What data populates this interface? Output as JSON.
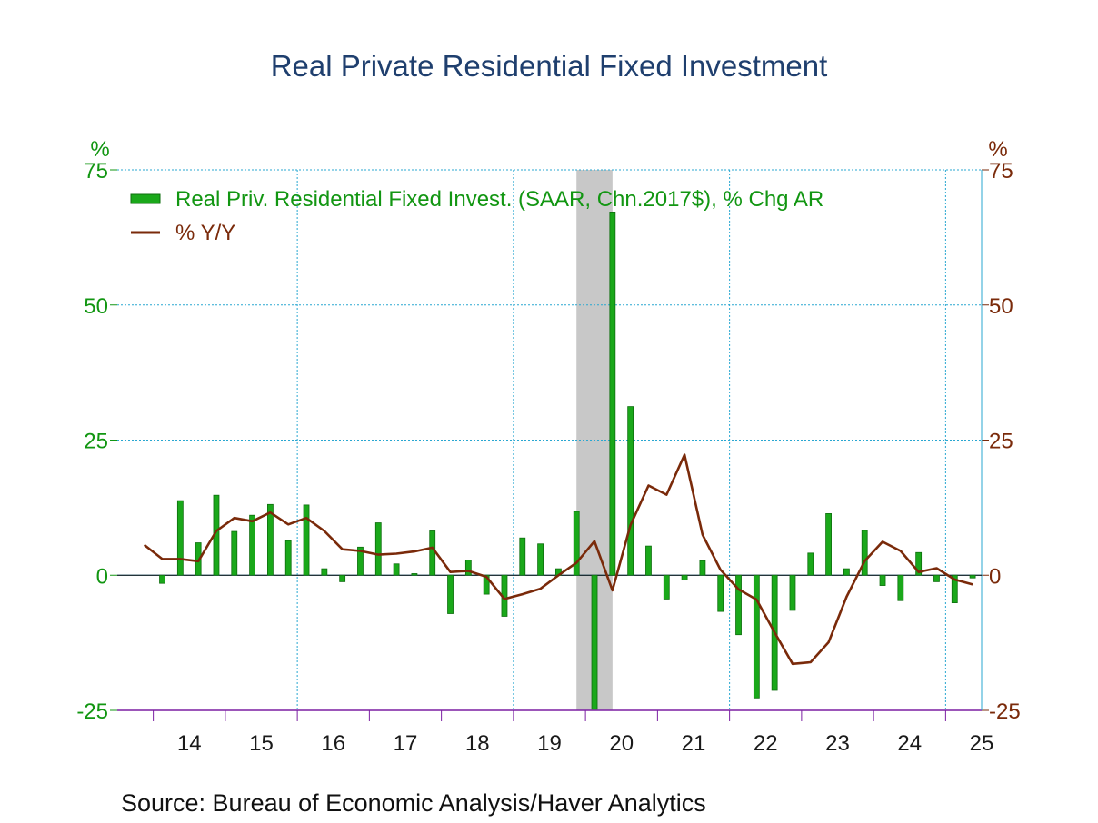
{
  "chart_data": {
    "type": "bar",
    "title": "Real Private Residential Fixed Investment",
    "source": "Source:  Bureau of Economic Analysis/Haver Analytics",
    "left_unit": "%",
    "right_unit": "%",
    "ylim": [
      -25,
      75
    ],
    "yticks": [
      75,
      50,
      25,
      0,
      -25
    ],
    "ytick_labels": [
      "75",
      "50",
      "25",
      "0",
      "-25"
    ],
    "xlim": [
      2013.5,
      2025.5
    ],
    "x_tick_labels": [
      "14",
      "15",
      "16",
      "17",
      "18",
      "19",
      "20",
      "21",
      "22",
      "23",
      "24",
      "25"
    ],
    "grid": true,
    "legend_placement": "top-left",
    "recession": {
      "start": 2019.875,
      "end": 2020.375
    },
    "colors": {
      "bars": "#1aa81a",
      "line": "#7a2a0a",
      "grid": "#29a7d1",
      "recession": "#c8c8c8",
      "left_axis": "#129612",
      "right_axis": "#7a2a0a"
    },
    "series": [
      {
        "name": "Real Priv. Residential Fixed Invest. (SAAR, Chn.2017$), % Chg AR",
        "kind": "bar",
        "x": [
          "2014Q1",
          "2014Q2",
          "2014Q3",
          "2014Q4",
          "2015Q1",
          "2015Q2",
          "2015Q3",
          "2015Q4",
          "2016Q1",
          "2016Q2",
          "2016Q3",
          "2016Q4",
          "2017Q1",
          "2017Q2",
          "2017Q3",
          "2017Q4",
          "2018Q1",
          "2018Q2",
          "2018Q3",
          "2018Q4",
          "2019Q1",
          "2019Q2",
          "2019Q3",
          "2019Q4",
          "2020Q1",
          "2020Q2",
          "2020Q3",
          "2020Q4",
          "2021Q1",
          "2021Q2",
          "2021Q3",
          "2021Q4",
          "2022Q1",
          "2022Q2",
          "2022Q3",
          "2022Q4",
          "2023Q1",
          "2023Q2",
          "2023Q3",
          "2023Q4",
          "2024Q1",
          "2024Q2",
          "2024Q3",
          "2024Q4",
          "2025Q1",
          "2025Q2"
        ],
        "values": [
          -1.5,
          13.8,
          6,
          14.8,
          8.1,
          11.1,
          13.1,
          6.4,
          13,
          1.2,
          -1.2,
          5.2,
          9.7,
          2.1,
          0.3,
          8.2,
          -7.1,
          2.8,
          -3.5,
          -7.6,
          6.9,
          5.8,
          1.2,
          11.8,
          -24.8,
          67.2,
          31.2,
          5.4,
          -4.4,
          -0.9,
          2.7,
          -6.7,
          -11,
          -22.7,
          -21.3,
          -6.5,
          4.1,
          11.4,
          1.2,
          8.3,
          -1.9,
          -4.7,
          4.2,
          -1.2,
          -5.1,
          -0.5
        ]
      },
      {
        "name": "% Y/Y",
        "kind": "line",
        "x": [
          "2013Q4",
          "2014Q1",
          "2014Q2",
          "2014Q3",
          "2014Q4",
          "2015Q1",
          "2015Q2",
          "2015Q3",
          "2015Q4",
          "2016Q1",
          "2016Q2",
          "2016Q3",
          "2016Q4",
          "2017Q1",
          "2017Q2",
          "2017Q3",
          "2017Q4",
          "2018Q1",
          "2018Q2",
          "2018Q3",
          "2018Q4",
          "2019Q1",
          "2019Q2",
          "2019Q3",
          "2019Q4",
          "2020Q1",
          "2020Q2",
          "2020Q3",
          "2020Q4",
          "2021Q1",
          "2021Q2",
          "2021Q3",
          "2021Q4",
          "2022Q1",
          "2022Q2",
          "2022Q3",
          "2022Q4",
          "2023Q1",
          "2023Q2",
          "2023Q3",
          "2023Q4",
          "2024Q1",
          "2024Q2",
          "2024Q3",
          "2024Q4",
          "2025Q1",
          "2025Q2"
        ],
        "values": [
          5.6,
          3,
          3,
          2.6,
          8.2,
          10.6,
          10,
          11.6,
          9.4,
          10.6,
          8.2,
          4.8,
          4.5,
          3.8,
          4,
          4.4,
          5.1,
          0.6,
          0.8,
          -0.3,
          -4.4,
          -3.5,
          -2.5,
          0,
          2.3,
          6.3,
          -2.8,
          9.3,
          16.6,
          14.9,
          22.3,
          7.5,
          1,
          -2.6,
          -4.5,
          -10.6,
          -16.4,
          -16.1,
          -12.4,
          -4,
          2.6,
          6.2,
          4.5,
          0.6,
          1.3,
          -0.8,
          -1.7
        ]
      }
    ]
  }
}
